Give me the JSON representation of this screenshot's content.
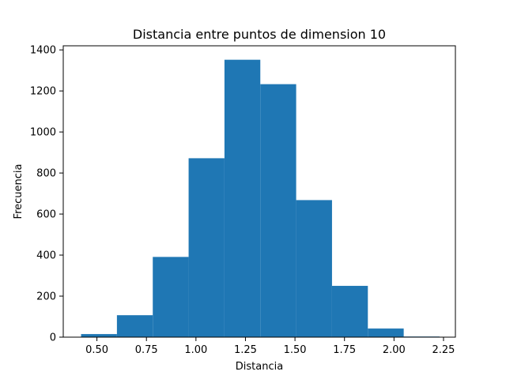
{
  "chart_data": {
    "type": "bar",
    "title": "Distancia entre puntos de dimension 10",
    "xlabel": "Distancia",
    "ylabel": "Frecuencia",
    "color": "#1f77b4",
    "bin_edges": [
      0.42,
      0.601,
      0.782,
      0.963,
      1.144,
      1.325,
      1.506,
      1.687,
      1.868,
      2.049,
      2.23
    ],
    "values": [
      15,
      107,
      391,
      872,
      1352,
      1233,
      668,
      250,
      42,
      3
    ],
    "xlim": [
      0.33,
      2.31
    ],
    "ylim": [
      0,
      1420
    ],
    "xticks": [
      0.5,
      0.75,
      1.0,
      1.25,
      1.5,
      1.75,
      2.0,
      2.25
    ],
    "xtick_labels": [
      "0.50",
      "0.75",
      "1.00",
      "1.25",
      "1.50",
      "1.75",
      "2.00",
      "2.25"
    ],
    "yticks": [
      0,
      200,
      400,
      600,
      800,
      1000,
      1200,
      1400
    ],
    "ytick_labels": [
      "0",
      "200",
      "400",
      "600",
      "800",
      "1000",
      "1200",
      "1400"
    ],
    "grid": false,
    "legend": "none"
  }
}
